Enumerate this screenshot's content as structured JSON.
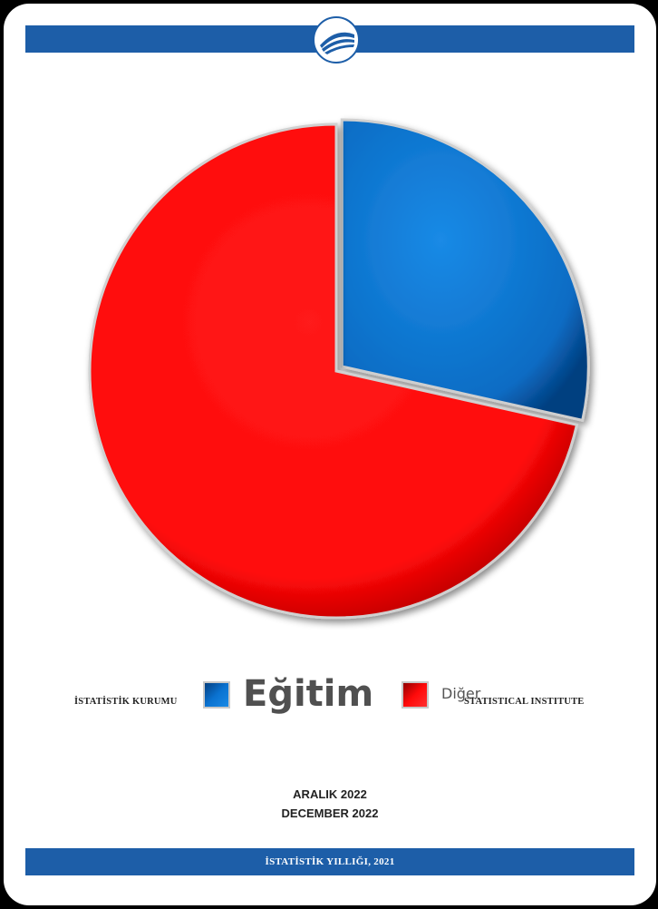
{
  "header": {
    "logo_icon": "tuik-logo-icon"
  },
  "chart_data": {
    "type": "pie",
    "categories": [
      "Eğitim",
      "Diğer"
    ],
    "values": [
      28.5,
      71.5
    ],
    "colors": [
      "#0a72d0",
      "#ff0a0a"
    ],
    "legend_position": "bottom"
  },
  "cover": {
    "left_label": "İSTATİSTİK KURUMU",
    "right_label": "STATISTICAL INSTITUTE",
    "date_tr": "ARALIK 2022",
    "date_en": "DECEMBER 2022",
    "footer": "İSTATİSTİK YILLIĞI, 2021"
  }
}
